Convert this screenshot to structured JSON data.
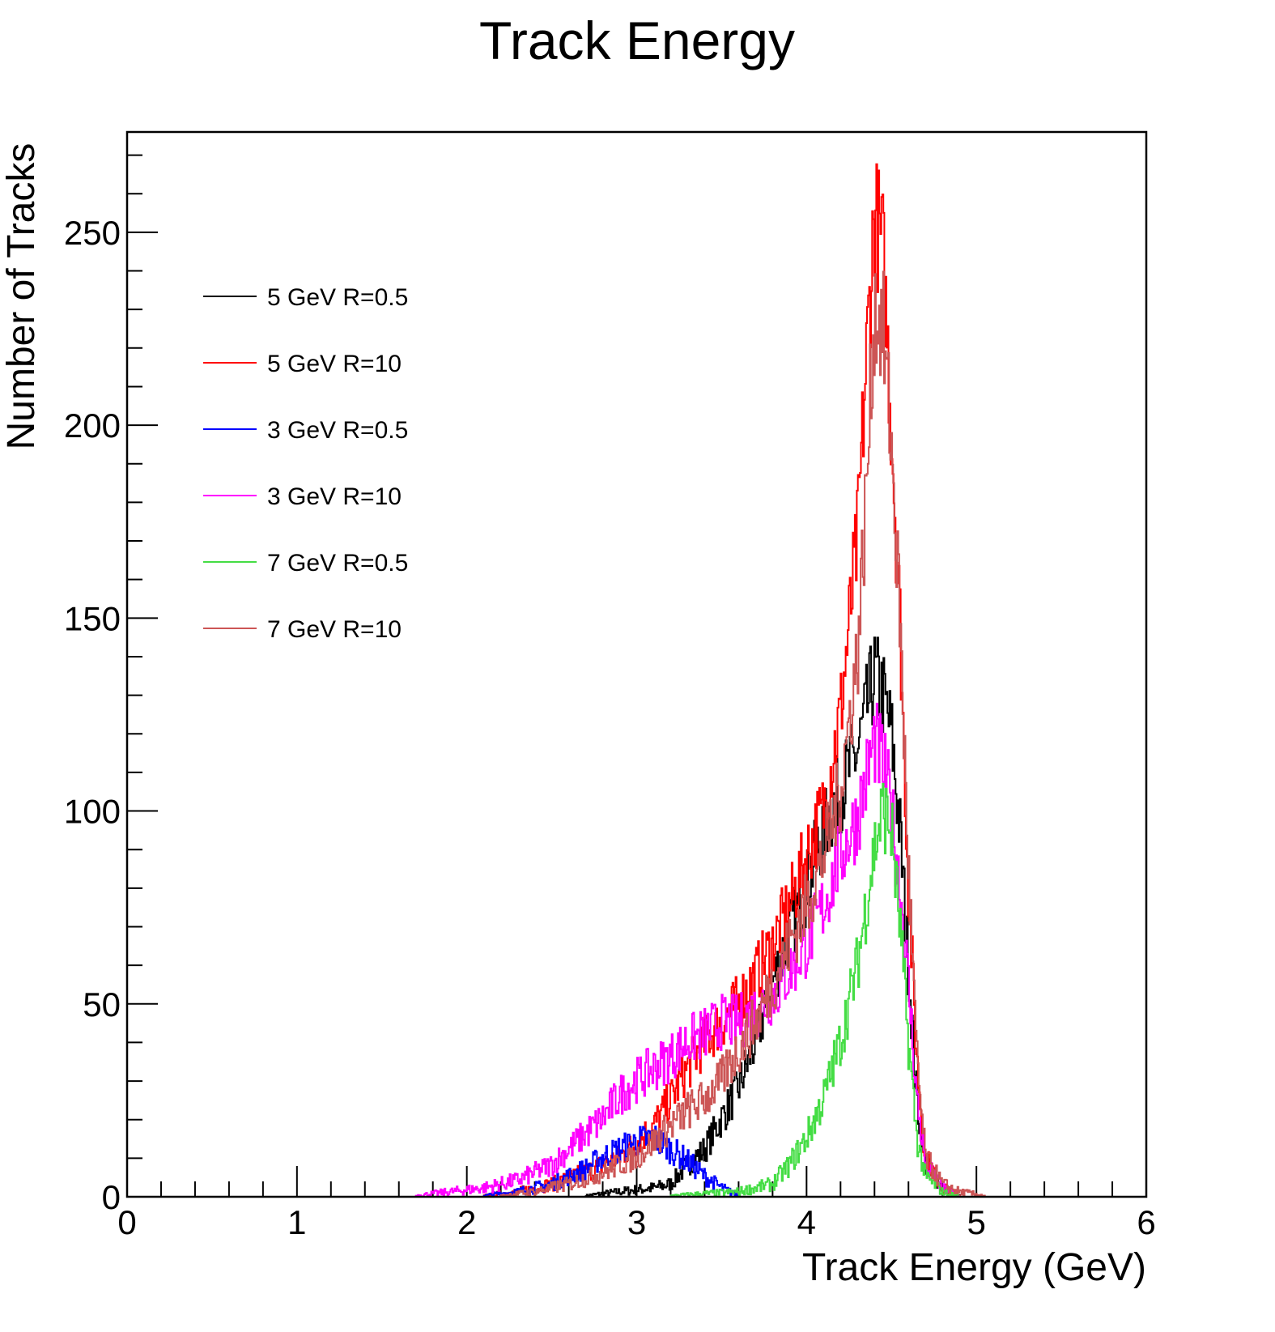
{
  "chart_data": {
    "type": "line",
    "style": "step-histogram",
    "title": "Track Energy",
    "xlabel": "Track Energy (GeV)",
    "ylabel": "Number of Tracks",
    "xlim": [
      0,
      6
    ],
    "ylim": [
      0,
      276
    ],
    "x_ticks": [
      "0",
      "1",
      "2",
      "3",
      "4",
      "5",
      "6"
    ],
    "y_ticks": [
      "0",
      "50",
      "100",
      "150",
      "200",
      "250"
    ],
    "legend_position": "top-left",
    "series": [
      {
        "name": "5 GeV R=0.5",
        "color": "#000000",
        "x": [
          2.7,
          2.9,
          3.1,
          3.2,
          3.3,
          3.4,
          3.5,
          3.6,
          3.7,
          3.8,
          3.9,
          4.0,
          4.1,
          4.2,
          4.3,
          4.35,
          4.4,
          4.45,
          4.5,
          4.55,
          4.6,
          4.65,
          4.7,
          4.8,
          4.9
        ],
        "y": [
          0,
          1,
          2,
          3,
          8,
          12,
          20,
          28,
          40,
          55,
          68,
          80,
          95,
          105,
          115,
          125,
          135,
          130,
          120,
          95,
          60,
          25,
          8,
          2,
          0
        ]
      },
      {
        "name": "5 GeV R=10",
        "color": "#ff0000",
        "x": [
          2.1,
          2.3,
          2.5,
          2.7,
          2.9,
          3.0,
          3.1,
          3.2,
          3.3,
          3.4,
          3.5,
          3.6,
          3.7,
          3.8,
          3.9,
          4.0,
          4.1,
          4.2,
          4.3,
          4.35,
          4.4,
          4.45,
          4.5,
          4.55,
          4.6,
          4.65,
          4.7,
          4.8,
          4.9
        ],
        "y": [
          0,
          1,
          3,
          6,
          10,
          14,
          18,
          25,
          33,
          40,
          45,
          50,
          57,
          65,
          75,
          88,
          100,
          125,
          170,
          215,
          255,
          245,
          200,
          150,
          80,
          35,
          10,
          2,
          0
        ]
      },
      {
        "name": "3 GeV R=0.5",
        "color": "#0000ff",
        "x": [
          2.1,
          2.3,
          2.5,
          2.7,
          2.8,
          2.9,
          3.0,
          3.1,
          3.2,
          3.3,
          3.4,
          3.5,
          3.6
        ],
        "y": [
          0,
          1,
          3,
          7,
          10,
          12,
          14,
          15,
          12,
          9,
          5,
          2,
          0
        ]
      },
      {
        "name": "3 GeV R=10",
        "color": "#ff00ff",
        "x": [
          1.7,
          1.9,
          2.1,
          2.3,
          2.5,
          2.6,
          2.7,
          2.8,
          2.9,
          3.0,
          3.1,
          3.2,
          3.3,
          3.4,
          3.5,
          3.6,
          3.7,
          3.8,
          3.9,
          4.0,
          4.1,
          4.2,
          4.3,
          4.35,
          4.4,
          4.45,
          4.5,
          4.55,
          4.6,
          4.65,
          4.7,
          4.8,
          4.9
        ],
        "y": [
          0,
          1,
          2,
          4,
          8,
          12,
          16,
          20,
          26,
          30,
          33,
          36,
          40,
          42,
          45,
          45,
          48,
          52,
          58,
          65,
          75,
          88,
          98,
          108,
          118,
          112,
          100,
          80,
          55,
          25,
          8,
          2,
          0
        ]
      },
      {
        "name": "7 GeV R=0.5",
        "color": "#44dd44",
        "x": [
          3.2,
          3.6,
          3.8,
          3.9,
          4.0,
          4.1,
          4.2,
          4.3,
          4.35,
          4.4,
          4.45,
          4.5,
          4.55,
          4.6,
          4.65,
          4.7,
          4.8,
          4.9
        ],
        "y": [
          0,
          1,
          3,
          8,
          15,
          25,
          40,
          60,
          75,
          90,
          100,
          95,
          70,
          40,
          15,
          5,
          1,
          0
        ]
      },
      {
        "name": "7 GeV R=10",
        "color": "#cc5555",
        "x": [
          2.2,
          2.4,
          2.6,
          2.8,
          3.0,
          3.1,
          3.2,
          3.3,
          3.4,
          3.5,
          3.6,
          3.7,
          3.8,
          3.9,
          4.0,
          4.1,
          4.2,
          4.3,
          4.35,
          4.4,
          4.45,
          4.5,
          4.55,
          4.6,
          4.65,
          4.7,
          4.8,
          4.9,
          5.05
        ],
        "y": [
          0,
          1,
          3,
          6,
          10,
          14,
          18,
          22,
          25,
          30,
          38,
          45,
          55,
          65,
          75,
          88,
          105,
          140,
          180,
          230,
          225,
          195,
          150,
          85,
          35,
          10,
          3,
          1,
          0
        ]
      }
    ]
  }
}
